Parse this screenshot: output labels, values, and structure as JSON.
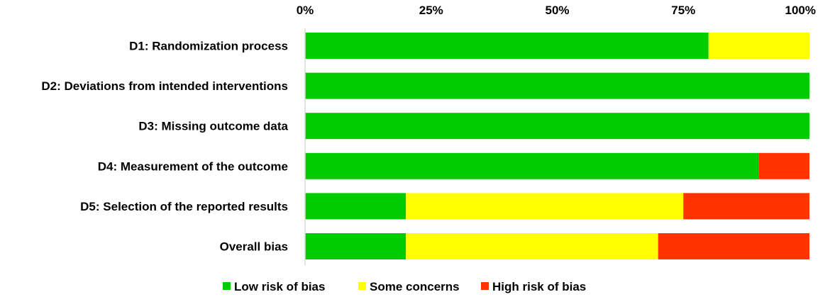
{
  "chart_data": {
    "type": "bar",
    "orientation": "horizontal",
    "stacked": true,
    "percent": true,
    "categories": [
      "D1: Randomization process",
      "D2: Deviations from intended interventions",
      "D3: Missing outcome data",
      "D4: Measurement of the outcome",
      "D5: Selection of the reported results",
      "Overall bias"
    ],
    "series": [
      {
        "name": "Low risk of bias",
        "color": "#00cc00",
        "values": [
          80,
          100,
          100,
          90,
          20,
          20
        ]
      },
      {
        "name": "Some concerns",
        "color": "#ffff00",
        "values": [
          20,
          0,
          0,
          0,
          55,
          50
        ]
      },
      {
        "name": "High risk of bias",
        "color": "#ff3300",
        "values": [
          0,
          0,
          0,
          10,
          25,
          30
        ]
      }
    ],
    "xlim": [
      0,
      100
    ],
    "xticks": [
      0,
      25,
      50,
      75,
      100
    ],
    "xtick_labels": [
      "0%",
      "25%",
      "50%",
      "75%",
      "100%"
    ],
    "xaxis_position": "top",
    "legend_position": "bottom",
    "grid": false
  }
}
